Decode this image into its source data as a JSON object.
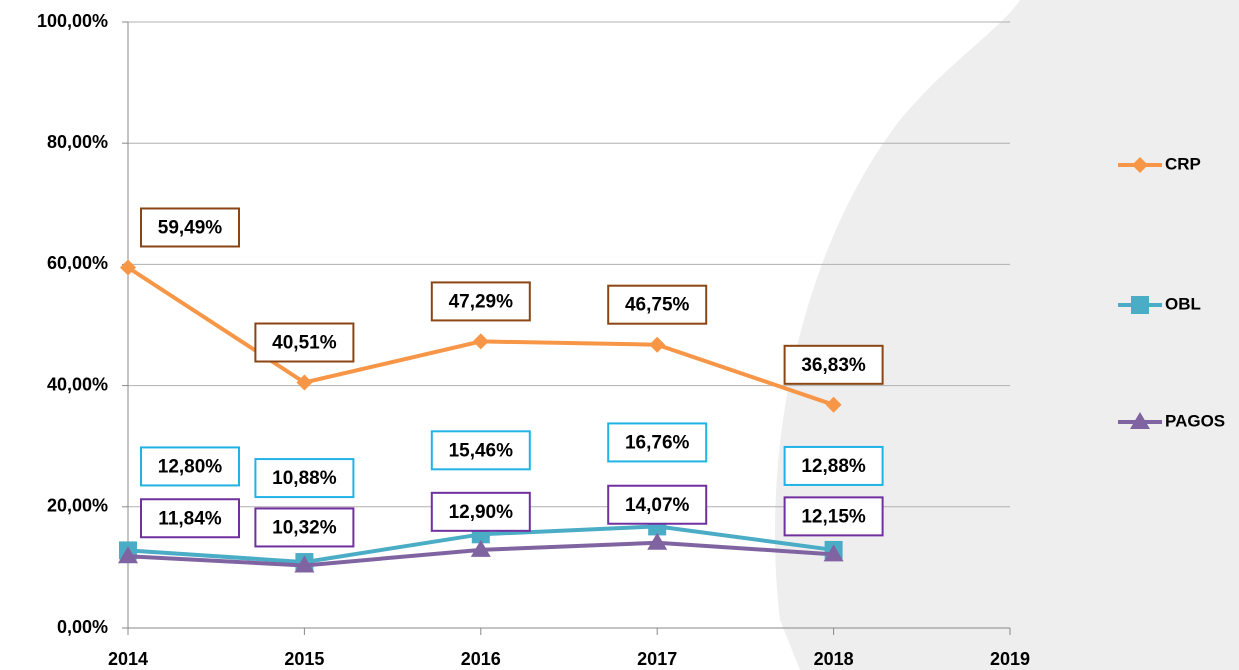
{
  "chart_data": {
    "type": "line",
    "x": [
      2014,
      2015,
      2016,
      2017,
      2018
    ],
    "xlim": [
      2014,
      2019
    ],
    "xticks": [
      2014,
      2015,
      2016,
      2017,
      2018,
      2019
    ],
    "ylim": [
      0,
      100
    ],
    "yticks": [
      {
        "value": 0,
        "label": "0,00%"
      },
      {
        "value": 20,
        "label": "20,00%"
      },
      {
        "value": 40,
        "label": "40,00%"
      },
      {
        "value": 60,
        "label": "60,00%"
      },
      {
        "value": 80,
        "label": "80,00%"
      },
      {
        "value": 100,
        "label": "100,00%"
      }
    ],
    "grid": true,
    "legend": "right",
    "series": [
      {
        "name": "CRP",
        "color": "#f79646",
        "marker": "diamond",
        "label_border": "#8b4513",
        "values": [
          59.49,
          40.51,
          47.29,
          46.75,
          36.83
        ],
        "value_labels": [
          "59,49%",
          "40,51%",
          "47,29%",
          "46,75%",
          "36,83%"
        ]
      },
      {
        "name": "OBL",
        "color": "#4bacc6",
        "marker": "square",
        "label_border": "#21b3e6",
        "values": [
          12.8,
          10.88,
          15.46,
          16.76,
          12.88
        ],
        "value_labels": [
          "12,80%",
          "10,88%",
          "15,46%",
          "16,76%",
          "12,88%"
        ]
      },
      {
        "name": "PAGOS",
        "color": "#8064a2",
        "marker": "triangle",
        "label_border": "#7030a0",
        "values": [
          11.84,
          10.32,
          12.9,
          14.07,
          12.15
        ],
        "value_labels": [
          "11,84%",
          "10,32%",
          "12,90%",
          "14,07%",
          "12,15%"
        ]
      }
    ]
  }
}
